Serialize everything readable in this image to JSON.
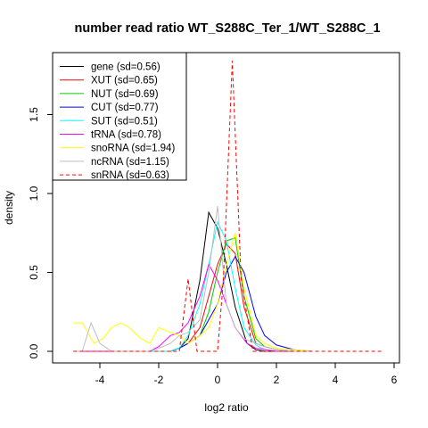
{
  "chart_data": {
    "type": "line",
    "title": "number read ratio WT_S288C_Ter_1/WT_S288C_1",
    "xlabel": "log2 ratio",
    "ylabel": "density",
    "xlim": [
      -5.0,
      6.0
    ],
    "ylim": [
      0,
      1.9
    ],
    "x_ticks": [
      "-4",
      "-2",
      "0",
      "2",
      "4",
      "6"
    ],
    "y_ticks": [
      "0.0",
      "0.5",
      "1.0",
      "1.5"
    ],
    "legend_position": "top-left",
    "grid": false,
    "series": [
      {
        "name": "gene (sd=0.56)",
        "color": "#000000",
        "dash": false,
        "x": [
          -4.9,
          -1.6,
          -1.3,
          -1.0,
          -0.6,
          -0.3,
          0.0,
          0.3,
          0.6,
          1.0,
          1.3,
          1.6,
          2.0,
          2.6,
          3.2
        ],
        "y": [
          0,
          0,
          0.02,
          0.08,
          0.45,
          0.88,
          0.78,
          0.55,
          0.28,
          0.05,
          0.01,
          0.0,
          0,
          0,
          0
        ]
      },
      {
        "name": "XUT (sd=0.65)",
        "color": "#ff0000",
        "dash": false,
        "x": [
          -4.9,
          -1.6,
          -1.3,
          -1.0,
          -0.6,
          -0.3,
          0.0,
          0.3,
          0.6,
          0.9,
          1.3,
          1.6,
          2.0,
          2.6,
          3.2
        ],
        "y": [
          0,
          0,
          0.02,
          0.05,
          0.15,
          0.35,
          0.55,
          0.68,
          0.62,
          0.28,
          0.05,
          0.03,
          0.01,
          0,
          0
        ]
      },
      {
        "name": "NUT (sd=0.69)",
        "color": "#00cc00",
        "dash": false,
        "x": [
          -4.9,
          -1.6,
          -1.3,
          -1.0,
          -0.6,
          -0.3,
          0.0,
          0.3,
          0.6,
          0.9,
          1.3,
          1.6,
          2.0,
          2.6,
          3.2
        ],
        "y": [
          0,
          0,
          0.02,
          0.05,
          0.1,
          0.25,
          0.5,
          0.7,
          0.72,
          0.35,
          0.08,
          0.03,
          0.01,
          0,
          0
        ]
      },
      {
        "name": "CUT (sd=0.77)",
        "color": "#0000ff",
        "dash": false,
        "x": [
          -4.9,
          -1.6,
          -1.3,
          -1.0,
          -0.6,
          -0.3,
          0.0,
          0.3,
          0.6,
          0.9,
          1.3,
          1.6,
          2.0,
          2.6,
          3.2
        ],
        "y": [
          0,
          0,
          0.02,
          0.05,
          0.1,
          0.2,
          0.3,
          0.5,
          0.6,
          0.5,
          0.22,
          0.1,
          0.04,
          0.01,
          0
        ]
      },
      {
        "name": "SUT (sd=0.51)",
        "color": "#00ffff",
        "dash": false,
        "x": [
          -4.9,
          -1.6,
          -1.3,
          -1.0,
          -0.6,
          -0.3,
          0.0,
          0.3,
          0.6,
          0.9,
          1.3,
          1.6,
          2.0,
          2.6,
          3.2
        ],
        "y": [
          0,
          0,
          0.02,
          0.1,
          0.3,
          0.55,
          0.82,
          0.7,
          0.4,
          0.15,
          0.04,
          0.01,
          0,
          0,
          0
        ]
      },
      {
        "name": "tRNA (sd=0.78)",
        "color": "#ff00ff",
        "dash": false,
        "x": [
          -4.9,
          -2.3,
          -2.0,
          -1.6,
          -1.3,
          -1.0,
          -0.6,
          -0.3,
          0.0,
          0.3,
          0.6,
          1.0,
          1.3,
          2.0,
          3.2
        ],
        "y": [
          0,
          0,
          0.03,
          0.1,
          0.12,
          0.18,
          0.35,
          0.55,
          0.45,
          0.3,
          0.15,
          0.05,
          0.02,
          0,
          0
        ]
      },
      {
        "name": "snoRNA (sd=1.94)",
        "color": "#ffff00",
        "dash": false,
        "x": [
          -4.9,
          -4.6,
          -4.2,
          -3.9,
          -3.6,
          -3.3,
          -3.0,
          -2.6,
          -2.3,
          -2.0,
          -1.6,
          -1.3,
          -1.0,
          -0.6,
          -0.3,
          0.0,
          0.3,
          0.6,
          0.9,
          1.3,
          1.6,
          2.0,
          3.2
        ],
        "y": [
          0.18,
          0.18,
          0.05,
          0.08,
          0.15,
          0.18,
          0.15,
          0.08,
          0.05,
          0.15,
          0.12,
          0.1,
          0.05,
          0.1,
          0.15,
          0.3,
          0.55,
          0.75,
          0.4,
          0.1,
          0.05,
          0.02,
          0
        ]
      },
      {
        "name": "ncRNA (sd=1.15)",
        "color": "#bebebe",
        "dash": false,
        "x": [
          -4.9,
          -4.6,
          -4.3,
          -4.0,
          -3.6,
          -2.3,
          -2.0,
          -1.6,
          -1.3,
          -1.0,
          -0.6,
          -0.3,
          0.0,
          0.15,
          0.3,
          0.6,
          0.9,
          1.3,
          1.6,
          2.0,
          2.6,
          3.2
        ],
        "y": [
          0,
          0,
          0.18,
          0.05,
          0,
          0,
          0.02,
          0.05,
          0.1,
          0.12,
          0.2,
          0.5,
          0.92,
          0.6,
          0.3,
          0.15,
          0.08,
          0.05,
          0.03,
          0.01,
          0,
          0
        ]
      },
      {
        "name": "snRNA (sd=0.63)",
        "color": "#ff0000",
        "dash": true,
        "x": [
          -4.9,
          -1.3,
          -1.0,
          -0.7,
          -0.3,
          0.0,
          0.2,
          0.5,
          0.8,
          1.2,
          1.6,
          2.0,
          3.0,
          4.0,
          5.6
        ],
        "y": [
          0,
          0,
          0.46,
          0,
          0,
          0,
          0.46,
          1.84,
          0.46,
          0,
          0,
          0,
          0,
          0,
          0
        ]
      }
    ]
  }
}
